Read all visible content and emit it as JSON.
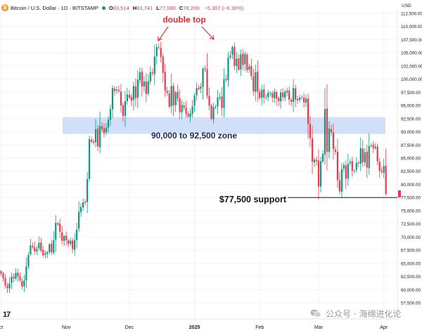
{
  "header": {
    "symbol": "Bitcoin / U.S. Dollar · 1D · BITSTAMP",
    "logo_text": "₿",
    "open_label": "O",
    "open": "83,514",
    "high_label": "H",
    "high": "83,741",
    "low_label": "L",
    "low": "77,098",
    "close_label": "C",
    "close": "78,200",
    "change": "−5,307 (−6.36%)"
  },
  "currency": "USD",
  "watermark": "公众号 · 海绵进化论",
  "tv_logo": "17",
  "colors": {
    "up": "#089981",
    "down": "#f23645",
    "zone": "#c9dbf7",
    "annotation_red": "#e8272a",
    "support_line": "#1c2a5c",
    "axis_text": "#6a6d78"
  },
  "chart_data": {
    "type": "candlestick",
    "ylim": [
      56000,
      113000
    ],
    "price_ticks": [
      57500,
      60000,
      62500,
      65000,
      67500,
      70000,
      72500,
      75000,
      77500,
      80000,
      82500,
      85000,
      87500,
      90000,
      92500,
      95000,
      97500,
      100000,
      102500,
      105000,
      107500,
      110000,
      112500
    ],
    "tick_labels": [
      "57,500.00",
      "60,000.00",
      "62,500.00",
      "65,000.00",
      "67,500.00",
      "70,000.00",
      "72,500.00",
      "75,000.00",
      "77,500.00",
      "80,000.00",
      "82,500.00",
      "85,000.00",
      "87,500.00",
      "90,000.00",
      "92,500.00",
      "95,000.00",
      "97,500.00",
      "100,000.00",
      "102,500.00",
      "105,000.00",
      "107,500.00",
      "110,000.00",
      "112,500.00"
    ],
    "x_labels": [
      {
        "label": "ct",
        "day": 0
      },
      {
        "label": "Nov",
        "day": 31
      },
      {
        "label": "Dec",
        "day": 61
      },
      {
        "label": "2025",
        "day": 92
      },
      {
        "label": "Feb",
        "day": 123
      },
      {
        "label": "Mar",
        "day": 151
      },
      {
        "label": "Apr",
        "day": 182
      }
    ],
    "closes": [
      63000,
      62200,
      60800,
      60300,
      61200,
      62400,
      62100,
      63200,
      62500,
      61800,
      60600,
      61700,
      64400,
      66600,
      68400,
      68100,
      67300,
      67700,
      68900,
      67400,
      66500,
      66900,
      67100,
      68600,
      67100,
      69400,
      72700,
      72400,
      71000,
      69300,
      70200,
      69400,
      68700,
      69300,
      67700,
      69400,
      71400,
      74800,
      75700,
      76600,
      76500,
      81000,
      88600,
      88100,
      87900,
      90500,
      87200,
      91100,
      90500,
      89800,
      90800,
      92300,
      94300,
      98300,
      97700,
      98000,
      97700,
      95000,
      93000,
      95800,
      97100,
      96500,
      95900,
      98700,
      96400,
      99900,
      101300,
      98600,
      99600,
      97200,
      99600,
      101300,
      101100,
      104300,
      106100,
      106000,
      104200,
      101200,
      97800,
      97400,
      94800,
      98700,
      95000,
      97500,
      96300,
      93700,
      95100,
      94600,
      93400,
      92900,
      93500,
      94800,
      96900,
      98300,
      98100,
      98600,
      102000,
      101900,
      96900,
      95000,
      92500,
      94700,
      94700,
      96500,
      96600,
      94500,
      100000,
      99900,
      104100,
      104500,
      106100,
      102500,
      103900,
      101800,
      104700,
      102700,
      104800,
      101700,
      102400,
      100600,
      97700,
      101300,
      97600,
      96400,
      98000,
      96500,
      96600,
      97400,
      97400,
      96500,
      97600,
      96300,
      95800,
      97500,
      96600,
      97600,
      97800,
      96100,
      95700,
      98300,
      96100,
      96200,
      96500,
      96600,
      95600,
      96300,
      91500,
      88800,
      84300,
      84700,
      84400,
      79600,
      84400,
      85800,
      94300,
      86200,
      90600,
      89900,
      86700,
      86200,
      80800,
      78700,
      82900,
      83700,
      81100,
      83900,
      84300,
      82600,
      82600,
      84100,
      84000,
      86900,
      84200,
      86100,
      83200,
      87300,
      87400,
      86900,
      87200,
      84400,
      82600,
      82300,
      83500,
      78200
    ],
    "annotations": [
      {
        "text": "double top"
      },
      {
        "text": "90,000 to 92,500 zone",
        "from": 90000,
        "to": 92500
      },
      {
        "text": "$77,500 support",
        "value": 77500
      }
    ]
  }
}
